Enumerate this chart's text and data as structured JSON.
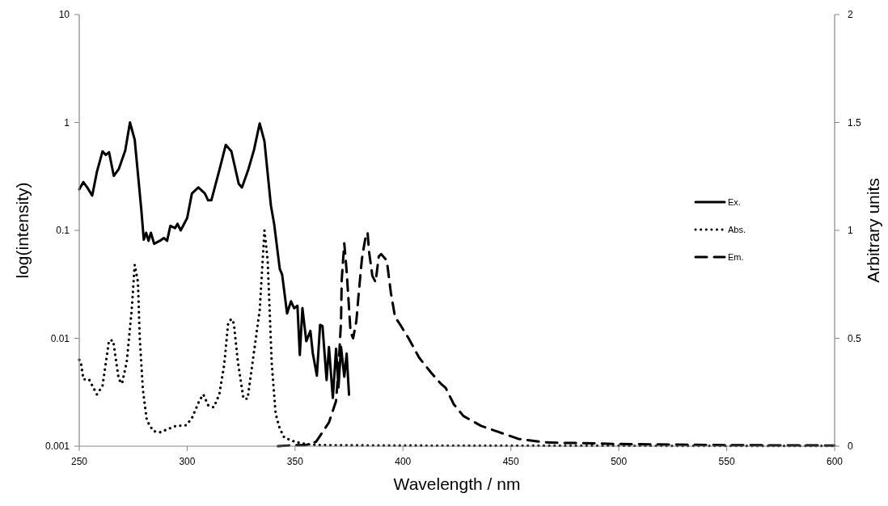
{
  "chart_data": {
    "type": "line",
    "xlabel": "Wavelength / nm",
    "ylabel": "log(intensity)",
    "y2label": "Arbitrary units",
    "log": "y",
    "legend": "right",
    "xlim": [
      250,
      600
    ],
    "xticks": [
      250,
      300,
      350,
      400,
      450,
      500,
      550,
      600
    ],
    "ylim": [
      0.001,
      10
    ],
    "yticks": [
      0.001,
      0.01,
      0.1,
      1,
      10
    ],
    "y2lim": [
      0,
      2
    ],
    "y2ticks": [
      0,
      0.5,
      1,
      1.5,
      2
    ],
    "series": [
      {
        "name": "Ex.",
        "color": "#000000",
        "line_style": "solid",
        "x": [
          250,
          251.9,
          253.7,
          256,
          258.2,
          260.8,
          262.3,
          263.8,
          266,
          268.3,
          271.3,
          273.5,
          275.7,
          278.7,
          279.9,
          281,
          282.1,
          283.2,
          284.7,
          287.3,
          289.2,
          290.7,
          292.2,
          294.4,
          295.5,
          297,
          300,
          302.2,
          305.2,
          308.2,
          309.7,
          311.2,
          314.9,
          317.9,
          320.5,
          323.9,
          325.4,
          328.4,
          331,
          333.6,
          335.8,
          338.8,
          340.3,
          342.9,
          344,
          346.3,
          348.1,
          349.6,
          351.1,
          352.2,
          353.4,
          355.2,
          357.1,
          358.2,
          360.1,
          361.6,
          362.7,
          364.6,
          365.7,
          367.5,
          369,
          370.1,
          371.3,
          372.8,
          373.9,
          375
        ],
        "values": [
          0.24,
          0.28,
          0.25,
          0.21,
          0.35,
          0.54,
          0.5,
          0.53,
          0.32,
          0.37,
          0.55,
          1.0,
          0.69,
          0.16,
          0.082,
          0.095,
          0.08,
          0.095,
          0.075,
          0.08,
          0.085,
          0.08,
          0.11,
          0.105,
          0.115,
          0.1,
          0.13,
          0.22,
          0.25,
          0.22,
          0.19,
          0.19,
          0.36,
          0.62,
          0.54,
          0.27,
          0.25,
          0.37,
          0.56,
          0.98,
          0.67,
          0.17,
          0.115,
          0.044,
          0.039,
          0.017,
          0.022,
          0.019,
          0.02,
          0.007,
          0.019,
          0.0094,
          0.0117,
          0.0073,
          0.0045,
          0.0133,
          0.013,
          0.0041,
          0.0083,
          0.0028,
          0.008,
          0.0035,
          0.0083,
          0.0044,
          0.0072,
          0.003
        ]
      },
      {
        "name": "Abs.",
        "color": "#000000",
        "line_style": "dotted",
        "axis": "y2",
        "x": [
          250,
          250.7,
          251.9,
          254.5,
          258.2,
          260.8,
          263.8,
          265.7,
          268.3,
          269.8,
          272,
          274.3,
          275.7,
          277.2,
          278,
          279.5,
          281.3,
          284.3,
          287.3,
          291.8,
          294.8,
          299.6,
          302.2,
          305.6,
          307.5,
          309.7,
          312.3,
          314.9,
          317.2,
          319,
          320.5,
          321.6,
          323.5,
          326.1,
          328,
          330.2,
          333.6,
          335.8,
          337.3,
          339.2,
          341,
          342.9,
          345,
          350,
          355,
          360,
          400,
          500,
          600
        ],
        "values": [
          0.4,
          0.39,
          0.31,
          0.31,
          0.24,
          0.28,
          0.49,
          0.49,
          0.31,
          0.29,
          0.39,
          0.63,
          0.84,
          0.76,
          0.51,
          0.26,
          0.12,
          0.07,
          0.064,
          0.082,
          0.094,
          0.097,
          0.13,
          0.21,
          0.24,
          0.19,
          0.18,
          0.24,
          0.38,
          0.57,
          0.59,
          0.57,
          0.39,
          0.22,
          0.22,
          0.38,
          0.63,
          1.0,
          0.86,
          0.38,
          0.15,
          0.082,
          0.04,
          0.02,
          0.01,
          0.005,
          0.003,
          0.002,
          0.001
        ]
      },
      {
        "name": "Em.",
        "color": "#000000",
        "line_style": "dashed",
        "axis": "y2",
        "x": [
          342,
          350,
          355,
          359.7,
          365.7,
          369,
          370.1,
          371.3,
          371.6,
          372.8,
          373.9,
          375,
          375.7,
          376.9,
          378.4,
          379.5,
          381,
          382.5,
          383.6,
          384.3,
          385.8,
          387.3,
          388.8,
          389.9,
          392.5,
          394.4,
          396.3,
          398.9,
          402.6,
          407.5,
          413.1,
          417.5,
          419.8,
          423.5,
          428,
          436.2,
          444.8,
          453.4,
          464.6,
          473.5,
          481,
          500,
          550,
          600
        ],
        "values": [
          0,
          0.005,
          0.005,
          0.02,
          0.11,
          0.21,
          0.36,
          0.58,
          0.77,
          0.94,
          0.81,
          0.64,
          0.53,
          0.5,
          0.58,
          0.71,
          0.87,
          0.96,
          0.99,
          0.9,
          0.79,
          0.76,
          0.88,
          0.89,
          0.86,
          0.71,
          0.6,
          0.56,
          0.5,
          0.41,
          0.34,
          0.29,
          0.27,
          0.195,
          0.14,
          0.094,
          0.064,
          0.034,
          0.019,
          0.015,
          0.015,
          0.01,
          0.005,
          0.003
        ]
      }
    ]
  }
}
